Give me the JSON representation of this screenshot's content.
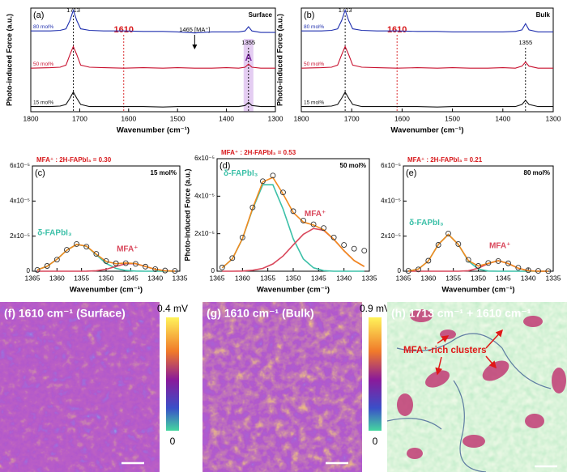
{
  "chart_data": [
    {
      "type": "line",
      "panel_label": "(a)",
      "title": "Surface",
      "x_label": "Wavenumber (cm⁻¹)",
      "y_label": "Photo-induced Force (a.u.)",
      "x": [
        1800,
        1760,
        1740,
        1728,
        1720,
        1713,
        1706,
        1698,
        1680,
        1650,
        1610,
        1570,
        1530,
        1500,
        1465,
        1430,
        1400,
        1375,
        1362,
        1355,
        1348,
        1330,
        1300
      ],
      "xlim": [
        1800,
        1300
      ],
      "xticks": [
        1800,
        1700,
        1600,
        1500,
        1400,
        1300
      ],
      "ylim": [
        0,
        1
      ],
      "vlines": [
        1713,
        1610,
        1355
      ],
      "vline_colors": [
        "#000000",
        "#d7191c",
        "#000000"
      ],
      "arrow": {
        "text": "1465 [MA⁺]",
        "x": 1465
      },
      "band": {
        "label": "A",
        "range": [
          1365,
          1345
        ],
        "color": "#d9b8ec"
      },
      "series": [
        {
          "name": "80 mol%",
          "color": "#1f2fae",
          "values": [
            0.78,
            0.78,
            0.785,
            0.8,
            0.88,
            0.98,
            0.88,
            0.8,
            0.785,
            0.78,
            0.78,
            0.775,
            0.775,
            0.77,
            0.76,
            0.77,
            0.77,
            0.77,
            0.78,
            0.82,
            0.78,
            0.765,
            0.765
          ]
        },
        {
          "name": "50 mol%",
          "color": "#c8102e",
          "values": [
            0.42,
            0.425,
            0.43,
            0.45,
            0.55,
            0.63,
            0.55,
            0.45,
            0.43,
            0.425,
            0.42,
            0.425,
            0.42,
            0.425,
            0.42,
            0.42,
            0.425,
            0.42,
            0.43,
            0.46,
            0.43,
            0.42,
            0.42
          ]
        },
        {
          "name": "15 mol%",
          "color": "#111111",
          "values": [
            0.05,
            0.05,
            0.055,
            0.07,
            0.13,
            0.19,
            0.13,
            0.07,
            0.05,
            0.05,
            0.05,
            0.05,
            0.045,
            0.05,
            0.05,
            0.05,
            0.05,
            0.05,
            0.06,
            0.09,
            0.06,
            0.05,
            0.05
          ]
        }
      ]
    },
    {
      "type": "line",
      "panel_label": "(b)",
      "title": "Bulk",
      "x_label": "Wavenumber (cm⁻¹)",
      "y_label": "Photo-induced Force (a.u.)",
      "x": [
        1800,
        1760,
        1740,
        1728,
        1720,
        1713,
        1706,
        1698,
        1680,
        1650,
        1610,
        1570,
        1530,
        1500,
        1465,
        1430,
        1400,
        1375,
        1362,
        1355,
        1348,
        1330,
        1300
      ],
      "xlim": [
        1800,
        1300
      ],
      "xticks": [
        1800,
        1700,
        1600,
        1500,
        1400,
        1300
      ],
      "ylim": [
        0,
        1
      ],
      "vlines": [
        1713,
        1610,
        1355
      ],
      "vline_colors": [
        "#000000",
        "#d7191c",
        "#000000"
      ],
      "series": [
        {
          "name": "80 mol%",
          "color": "#1f2fae",
          "values": [
            0.78,
            0.78,
            0.785,
            0.8,
            0.88,
            0.98,
            0.88,
            0.8,
            0.785,
            0.78,
            0.78,
            0.775,
            0.775,
            0.77,
            0.77,
            0.77,
            0.77,
            0.775,
            0.79,
            0.85,
            0.79,
            0.77,
            0.77
          ]
        },
        {
          "name": "50 mol%",
          "color": "#c8102e",
          "values": [
            0.42,
            0.425,
            0.43,
            0.45,
            0.55,
            0.63,
            0.55,
            0.45,
            0.43,
            0.425,
            0.42,
            0.425,
            0.42,
            0.425,
            0.42,
            0.42,
            0.425,
            0.42,
            0.44,
            0.48,
            0.44,
            0.42,
            0.42
          ]
        },
        {
          "name": "15 mol%",
          "color": "#111111",
          "values": [
            0.05,
            0.05,
            0.055,
            0.07,
            0.13,
            0.19,
            0.13,
            0.07,
            0.05,
            0.05,
            0.05,
            0.05,
            0.045,
            0.05,
            0.05,
            0.05,
            0.05,
            0.05,
            0.07,
            0.11,
            0.07,
            0.05,
            0.05
          ]
        }
      ]
    },
    {
      "type": "line",
      "panel_label": "(c)",
      "title": "15 mol%",
      "subtitle": "MFA⁺ : 2H-FAPbI₃ = 0.30",
      "x_label": "Wavenumber (cm⁻¹)",
      "x": [
        1364,
        1362,
        1360,
        1358,
        1356,
        1354,
        1352,
        1350,
        1348,
        1346,
        1344,
        1342,
        1340,
        1338,
        1336
      ],
      "xlim": [
        1365,
        1335
      ],
      "xticks": [
        1365,
        1360,
        1355,
        1350,
        1345,
        1340,
        1335
      ],
      "ylim": [
        0,
        6e-05
      ],
      "yticks": [
        0,
        {
          "value": 2e-05,
          "label": "2x10⁻⁵"
        },
        {
          "value": 4e-05,
          "label": "4x10⁻⁵"
        },
        {
          "value": 6e-05,
          "label": "6x10⁻⁵"
        }
      ],
      "series": [
        {
          "name": "δ-FAPbI₃",
          "color": "#3cc0a8",
          "values": [
            8e-07,
            2.8e-06,
            6.8e-06,
            1.2e-05,
            1.53e-05,
            1.42e-05,
            9.4e-06,
            4.5e-06,
            1.6e-06,
            4e-07,
            1e-07,
            0,
            0,
            0,
            0
          ]
        },
        {
          "name": "MFA⁺",
          "color": "#d9475b",
          "values": [
            0,
            0,
            0,
            0,
            0,
            5e-08,
            3e-07,
            1.1e-06,
            2.7e-06,
            4.3e-06,
            4.3e-06,
            2.7e-06,
            1.1e-06,
            3e-07,
            5e-08
          ]
        },
        {
          "color": "#f28a1e",
          "values": [
            8e-07,
            2.8e-06,
            6.8e-06,
            1.2e-05,
            1.53e-05,
            1.43e-05,
            9.7e-06,
            5.6e-06,
            4.3e-06,
            4.7e-06,
            4.4e-06,
            2.7e-06,
            1.1e-06,
            3e-07,
            5e-08
          ]
        },
        {
          "color": "#333333",
          "marker": "circle",
          "values": [
            7e-07,
            3e-06,
            6.6e-06,
            1.22e-05,
            1.55e-05,
            1.4e-05,
            9.9e-06,
            5.8e-06,
            4.5e-06,
            4.6e-06,
            4.2e-06,
            2.6e-06,
            1.2e-06,
            4e-07,
            2e-07
          ]
        }
      ]
    },
    {
      "type": "line",
      "panel_label": "(d)",
      "title": "50 mol%",
      "subtitle": "MFA⁺ : 2H-FAPbI₃ = 0.53",
      "x_label": "Wavenumber (cm⁻¹)",
      "y_label": "Photo-induced Force (a.u.)",
      "x": [
        1364,
        1362,
        1360,
        1358,
        1356,
        1354,
        1352,
        1350,
        1348,
        1346,
        1344,
        1342,
        1340,
        1338,
        1336
      ],
      "xlim": [
        1365,
        1335
      ],
      "xticks": [
        1365,
        1360,
        1355,
        1350,
        1345,
        1340,
        1335
      ],
      "ylim": [
        0,
        6e-05
      ],
      "yticks": [
        0,
        {
          "value": 2e-05,
          "label": "2x10⁻⁵"
        },
        {
          "value": 4e-05,
          "label": "4x10⁻⁵"
        },
        {
          "value": 6e-05,
          "label": "6x10⁻⁵"
        }
      ],
      "series": [
        {
          "name": "δ-FAPbI₃",
          "color": "#3cc0a8",
          "values": [
            1.8e-06,
            6.5e-06,
            1.73e-05,
            3.31e-05,
            4.61e-05,
            4.61e-05,
            3.31e-05,
            1.73e-05,
            6.5e-06,
            1.8e-06,
            3e-07,
            0,
            0,
            0,
            0
          ]
        },
        {
          "name": "MFA⁺",
          "color": "#d9475b",
          "values": [
            0,
            0,
            1e-07,
            5e-07,
            1.5e-06,
            3.9e-06,
            8.1e-06,
            1.4e-05,
            1.97e-05,
            2.28e-05,
            2.18e-05,
            1.7e-05,
            1.09e-05,
            5.7e-06,
            2.5e-06
          ]
        },
        {
          "color": "#f28a1e",
          "values": [
            1.8e-06,
            6.5e-06,
            1.74e-05,
            3.36e-05,
            4.76e-05,
            5e-05,
            4.12e-05,
            3.13e-05,
            2.62e-05,
            2.46e-05,
            2.21e-05,
            1.7e-05,
            1.09e-05,
            5.7e-06,
            2.5e-06
          ]
        },
        {
          "color": "#333333",
          "marker": "circle",
          "values": [
            2e-06,
            7e-06,
            1.8e-05,
            3.4e-05,
            4.8e-05,
            5.1e-05,
            4.2e-05,
            3.2e-05,
            2.7e-05,
            2.5e-05,
            2.3e-05,
            1.8e-05,
            1.4e-05,
            1.2e-05,
            1.1e-05
          ]
        }
      ]
    },
    {
      "type": "line",
      "panel_label": "(e)",
      "title": "80 mol%",
      "subtitle": "MFA⁺ : 2H-FAPbI₃ = 0.21",
      "x_label": "Wavenumber (cm⁻¹)",
      "x": [
        1364,
        1362,
        1360,
        1358,
        1356,
        1354,
        1352,
        1350,
        1348,
        1346,
        1344,
        1342,
        1340,
        1338,
        1336
      ],
      "xlim": [
        1365,
        1335
      ],
      "xticks": [
        1365,
        1360,
        1355,
        1350,
        1345,
        1340,
        1335
      ],
      "ylim": [
        0,
        6e-05
      ],
      "yticks": [
        0,
        {
          "value": 2e-05,
          "label": "2x10⁻⁵"
        },
        {
          "value": 4e-05,
          "label": "4x10⁻⁵"
        },
        {
          "value": 6e-05,
          "label": "6x10⁻⁵"
        }
      ],
      "series": [
        {
          "name": "δ-FAPbI₃",
          "color": "#3cc0a8",
          "values": [
            1e-07,
            1.2e-06,
            5.8e-06,
            1.53e-05,
            2.1e-05,
            1.53e-05,
            5.8e-06,
            1.2e-06,
            1e-07,
            0,
            0,
            0,
            0,
            0,
            0
          ]
        },
        {
          "name": "MFA⁺",
          "color": "#d9475b",
          "values": [
            0,
            0,
            0,
            0,
            0,
            0,
            3e-07,
            1.7e-06,
            4.4e-06,
            6e-06,
            4.4e-06,
            1.7e-06,
            3e-07,
            0,
            0
          ]
        },
        {
          "color": "#f28a1e",
          "values": [
            1e-07,
            1.2e-06,
            5.8e-06,
            1.53e-05,
            2.1e-05,
            1.53e-05,
            6.1e-06,
            2.9e-06,
            4.5e-06,
            6e-06,
            4.4e-06,
            1.7e-06,
            3e-07,
            0,
            0
          ]
        },
        {
          "color": "#333333",
          "marker": "circle",
          "values": [
            2e-07,
            1e-06,
            6e-06,
            1.5e-05,
            2.15e-05,
            1.55e-05,
            6.5e-06,
            3e-06,
            4.7e-06,
            5.8e-06,
            4.5e-06,
            2e-06,
            6e-07,
            2e-07,
            1e-07
          ]
        }
      ]
    }
  ],
  "maps": [
    {
      "label": "(f) 1610 cm⁻¹ (Surface)",
      "colorbar_max": "0.4 mV",
      "colorbar_min": "0"
    },
    {
      "label": "(g) 1610 cm⁻¹ (Bulk)",
      "colorbar_max": "0.9 mV",
      "colorbar_min": "0"
    },
    {
      "label": "(h) 1713 cm⁻¹ + 1610 cm⁻¹",
      "annotation": "MFA⁺-rich clusters"
    }
  ]
}
